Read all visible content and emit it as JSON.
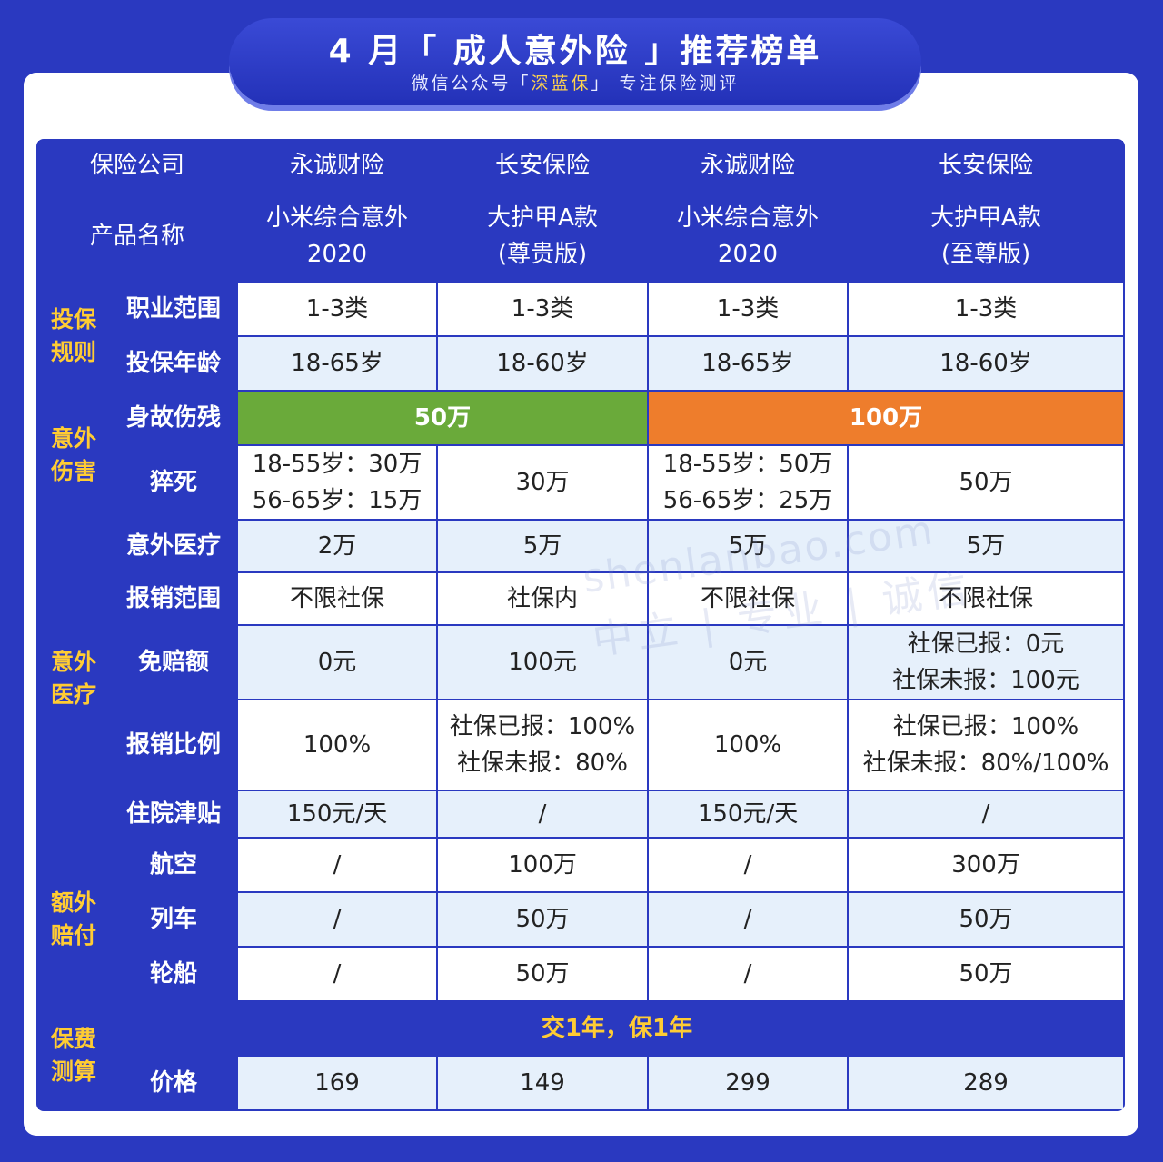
{
  "banner": {
    "title": "4 月「 成人意外险 」推荐榜单",
    "subtitle_pre": "微信公众号「",
    "subtitle_brand": "深蓝保",
    "subtitle_post": "」 专注保险测评"
  },
  "header": {
    "company_label": "保险公司",
    "product_label": "产品名称",
    "companies": [
      "永诚财险",
      "长安保险",
      "永诚财险",
      "长安保险"
    ],
    "products": [
      [
        "小米综合意外",
        "2020"
      ],
      [
        "大护甲A款",
        "(尊贵版)"
      ],
      [
        "小米综合意外",
        "2020"
      ],
      [
        "大护甲A款",
        "(至尊版)"
      ]
    ]
  },
  "sections": {
    "rules": "投保\n规则",
    "accident": "意外\n伤害",
    "medical": "意外\n医疗",
    "extra": "额外\n赔付",
    "premium": "保费\n测算"
  },
  "rows": {
    "occupation": {
      "label": "职业范围",
      "values": [
        "1-3类",
        "1-3类",
        "1-3类",
        "1-3类"
      ]
    },
    "age": {
      "label": "投保年龄",
      "values": [
        "18-65岁",
        "18-60岁",
        "18-65岁",
        "18-60岁"
      ]
    },
    "death": {
      "label": "身故伤残",
      "left": "50万",
      "right": "100万"
    },
    "sudden": {
      "label": "猝死",
      "values": [
        [
          "18-55岁：30万",
          "56-65岁：15万"
        ],
        [
          "30万"
        ],
        [
          "18-55岁：50万",
          "56-65岁：25万"
        ],
        [
          "50万"
        ]
      ]
    },
    "med": {
      "label": "意外医疗",
      "values": [
        "2万",
        "5万",
        "5万",
        "5万"
      ]
    },
    "scope": {
      "label": "报销范围",
      "values": [
        "不限社保",
        "社保内",
        "不限社保",
        "不限社保"
      ]
    },
    "deduct": {
      "label": "免赔额",
      "values": [
        [
          "0元"
        ],
        [
          "100元"
        ],
        [
          "0元"
        ],
        [
          "社保已报：0元",
          "社保未报：100元"
        ]
      ]
    },
    "ratio": {
      "label": "报销比例",
      "values": [
        [
          "100%"
        ],
        [
          "社保已报：100%",
          "社保未报：80%"
        ],
        [
          "100%"
        ],
        [
          "社保已报：100%",
          "社保未报：80%/100%"
        ]
      ]
    },
    "hospital": {
      "label": "住院津贴",
      "values": [
        "150元/天",
        "/",
        "150元/天",
        "/"
      ]
    },
    "air": {
      "label": "航空",
      "values": [
        "/",
        "100万",
        "/",
        "300万"
      ]
    },
    "train": {
      "label": "列车",
      "values": [
        "/",
        "50万",
        "/",
        "50万"
      ]
    },
    "ship": {
      "label": "轮船",
      "values": [
        "/",
        "50万",
        "/",
        "50万"
      ]
    },
    "term": {
      "text": "交1年，保1年"
    },
    "price": {
      "label": "价格",
      "values": [
        "169",
        "149",
        "299",
        "289"
      ]
    }
  },
  "watermark": {
    "line1": "shenlanbao.com",
    "line2": "中立 | 专业 | 诚信"
  },
  "colors": {
    "primary": "#2a39c0",
    "accent": "#ffcc33",
    "green": "#6aaa3a",
    "orange": "#ee7d2c",
    "row_alt": "#e6f0fb"
  }
}
